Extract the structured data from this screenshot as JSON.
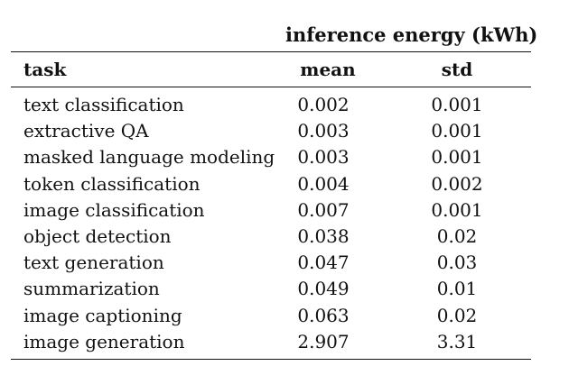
{
  "table": {
    "group_header": "inference energy (kWh)",
    "headers": {
      "task": "task",
      "mean": "mean",
      "std": "std"
    },
    "rows": [
      {
        "task": "text classification",
        "mean": "0.002",
        "std": "0.001"
      },
      {
        "task": "extractive QA",
        "mean": "0.003",
        "std": "0.001"
      },
      {
        "task": "masked language modeling",
        "mean": "0.003",
        "std": "0.001"
      },
      {
        "task": "token classification",
        "mean": "0.004",
        "std": "0.002"
      },
      {
        "task": "image classification",
        "mean": "0.007",
        "std": "0.001"
      },
      {
        "task": "object detection",
        "mean": "0.038",
        "std": "0.02"
      },
      {
        "task": "text generation",
        "mean": "0.047",
        "std": "0.03"
      },
      {
        "task": "summarization",
        "mean": "0.049",
        "std": "0.01"
      },
      {
        "task": "image captioning",
        "mean": "0.063",
        "std": "0.02"
      },
      {
        "task": "image generation",
        "mean": "2.907",
        "std": "3.31"
      }
    ]
  }
}
